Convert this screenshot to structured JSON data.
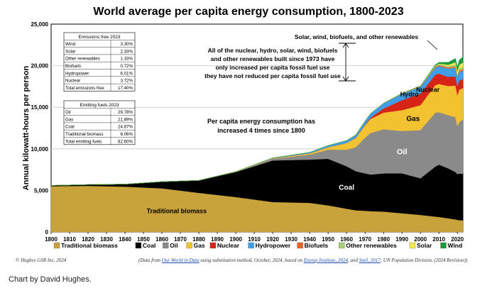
{
  "chart_data": {
    "type": "area",
    "title": "World average per capita energy consumption, 1800-2023",
    "ylabel": "Annual kilowatt-hours per person",
    "xlabel": "",
    "xlim": [
      1800,
      2023
    ],
    "ylim": [
      0,
      25000
    ],
    "x_ticks": [
      "1800",
      "1810",
      "1820",
      "1830",
      "1840",
      "1850",
      "1860",
      "1870",
      "1880",
      "1890",
      "1900",
      "1910",
      "1920",
      "1930",
      "1940",
      "1950",
      "1960",
      "1970",
      "1980",
      "1990",
      "2000",
      "2010",
      "2020"
    ],
    "y_ticks": [
      "0",
      "5,000",
      "10,000",
      "15,000",
      "20,000",
      "25,000"
    ],
    "grid": "horizontal",
    "years": [
      1800,
      1820,
      1840,
      1860,
      1880,
      1900,
      1920,
      1940,
      1950,
      1960,
      1965,
      1970,
      1973,
      1980,
      1990,
      2000,
      2008,
      2010,
      2015,
      2019,
      2020,
      2021,
      2023
    ],
    "series": [
      {
        "name": "Traditional biomass",
        "color": "#c8a23a",
        "values": [
          5500,
          5550,
          5450,
          5250,
          4700,
          4200,
          3600,
          3500,
          3200,
          2800,
          2600,
          2550,
          2500,
          2450,
          2250,
          2050,
          1850,
          1800,
          1650,
          1500,
          1450,
          1420,
          1400
        ]
      },
      {
        "name": "Coal",
        "color": "#000000",
        "values": [
          100,
          150,
          300,
          800,
          1500,
          3000,
          5000,
          5200,
          5600,
          5100,
          4700,
          4500,
          4400,
          4600,
          4800,
          4400,
          6000,
          6300,
          6000,
          5700,
          5500,
          5600,
          5600
        ]
      },
      {
        "name": "Oil",
        "color": "#8a8a8a",
        "values": [
          0,
          0,
          0,
          0,
          0,
          30,
          200,
          600,
          1100,
          2000,
          2900,
          4300,
          5000,
          5300,
          5100,
          5800,
          6500,
          6300,
          6400,
          6600,
          5800,
          6200,
          6500
        ]
      },
      {
        "name": "Gas",
        "color": "#f2c230",
        "values": [
          0,
          0,
          0,
          0,
          0,
          20,
          60,
          150,
          300,
          800,
          1100,
          1500,
          1700,
          2000,
          2500,
          3000,
          3300,
          3400,
          3500,
          3800,
          3700,
          3900,
          3800
        ]
      },
      {
        "name": "Nuclear",
        "color": "#d62416",
        "values": [
          0,
          0,
          0,
          0,
          0,
          0,
          0,
          0,
          0,
          0,
          20,
          50,
          150,
          500,
          1200,
          1400,
          1250,
          1250,
          1100,
          1100,
          1100,
          1100,
          1100
        ]
      },
      {
        "name": "Hydropower",
        "color": "#3f9ee6",
        "values": [
          0,
          0,
          0,
          0,
          0,
          10,
          50,
          120,
          200,
          300,
          350,
          450,
          500,
          600,
          750,
          800,
          850,
          900,
          1000,
          1050,
          1050,
          1030,
          1000
        ]
      },
      {
        "name": "Biofuels",
        "color": "#e8622a",
        "values": [
          0,
          0,
          0,
          0,
          0,
          0,
          0,
          0,
          0,
          0,
          0,
          0,
          0,
          20,
          50,
          60,
          110,
          130,
          140,
          160,
          160,
          160,
          165
        ]
      },
      {
        "name": "Other renewables",
        "color": "#a7cf72",
        "values": [
          0,
          0,
          0,
          0,
          0,
          0,
          0,
          0,
          0,
          0,
          0,
          0,
          0,
          20,
          40,
          60,
          120,
          130,
          170,
          220,
          240,
          260,
          300
        ]
      },
      {
        "name": "Solar",
        "color": "#f7e84d",
        "values": [
          0,
          0,
          0,
          0,
          0,
          0,
          0,
          0,
          0,
          0,
          0,
          0,
          0,
          0,
          0,
          0,
          20,
          50,
          150,
          300,
          350,
          420,
          530
        ]
      },
      {
        "name": "Wind",
        "color": "#1d9a3e",
        "values": [
          0,
          0,
          0,
          0,
          0,
          0,
          0,
          0,
          0,
          0,
          0,
          0,
          0,
          0,
          0,
          10,
          110,
          150,
          300,
          450,
          500,
          580,
          700
        ]
      }
    ],
    "area_labels": [
      {
        "text": "Traditional biomass",
        "series": "Traditional biomass"
      },
      {
        "text": "Coal",
        "series": "Coal"
      },
      {
        "text": "Oil",
        "series": "Oil"
      },
      {
        "text": "Gas",
        "series": "Gas"
      },
      {
        "text": "Nuclear",
        "series": "Nuclear"
      },
      {
        "text": "Hydro",
        "series": "Hydropower"
      }
    ],
    "annotations": {
      "renewables": "Solar, wind, biofuels, and other renewables",
      "since1973": [
        "All of the nuclear, hydro, solar, wind, biofuels",
        "and other renewables built since 1973 have",
        "only increased per capita fossil fuel use",
        "they have not reduced per capita fossil fuel use"
      ],
      "increase": [
        "Per capita energy consumption has",
        "increased 4 times since 1800"
      ]
    },
    "tables": [
      {
        "header": "Emissions free 2023",
        "rows": [
          [
            "Wind",
            "3.30%"
          ],
          [
            "Solar",
            "2.33%"
          ],
          [
            "Other renewables",
            "1.33%"
          ],
          [
            "Biofuels",
            "0.72%"
          ],
          [
            "Hydropower",
            "6.01%"
          ],
          [
            "Nuclear",
            "3.72%"
          ],
          [
            "Total emissions free",
            "17.40%"
          ]
        ]
      },
      {
        "header": "Emitting fuels 2023",
        "rows": [
          [
            "Oil",
            "29.78%"
          ],
          [
            "Gas",
            "21.89%"
          ],
          [
            "Coal",
            "24.87%"
          ],
          [
            "Traditional biomass",
            "6.06%"
          ],
          [
            "Total emitting fuels",
            "82.60%"
          ]
        ]
      }
    ],
    "legend": [
      {
        "name": "Traditional biomass",
        "color": "#c8a23a"
      },
      {
        "name": "Coal",
        "color": "#000000"
      },
      {
        "name": "Oil",
        "color": "#8a8a8a"
      },
      {
        "name": "Gas",
        "color": "#f2c230"
      },
      {
        "name": "Nuclear",
        "color": "#d62416"
      },
      {
        "name": "Hydropower",
        "color": "#3f9ee6"
      },
      {
        "name": "Biofuels",
        "color": "#e8622a"
      },
      {
        "name": "Other renewables",
        "color": "#a7cf72"
      },
      {
        "name": "Solar",
        "color": "#f7e84d"
      },
      {
        "name": "Wind",
        "color": "#1d9a3e"
      }
    ],
    "legend_position": "bottom"
  },
  "footer": {
    "copyright": "© Hughes GSR Inc, 2024",
    "source_parts": [
      {
        "text": "(Data from ",
        "link": false
      },
      {
        "text": "Our World in Data",
        "link": true
      },
      {
        "text": " using substitution method, October, 2024, based on ",
        "link": false
      },
      {
        "text": "Energy Institute, 2024",
        "link": true
      },
      {
        "text": ", and ",
        "link": false
      },
      {
        "text": "Smil, 2017",
        "link": true
      },
      {
        "text": "; UN Population Division, (2024 Revision))",
        "link": false
      }
    ]
  },
  "credit": "Chart by David Hughes."
}
